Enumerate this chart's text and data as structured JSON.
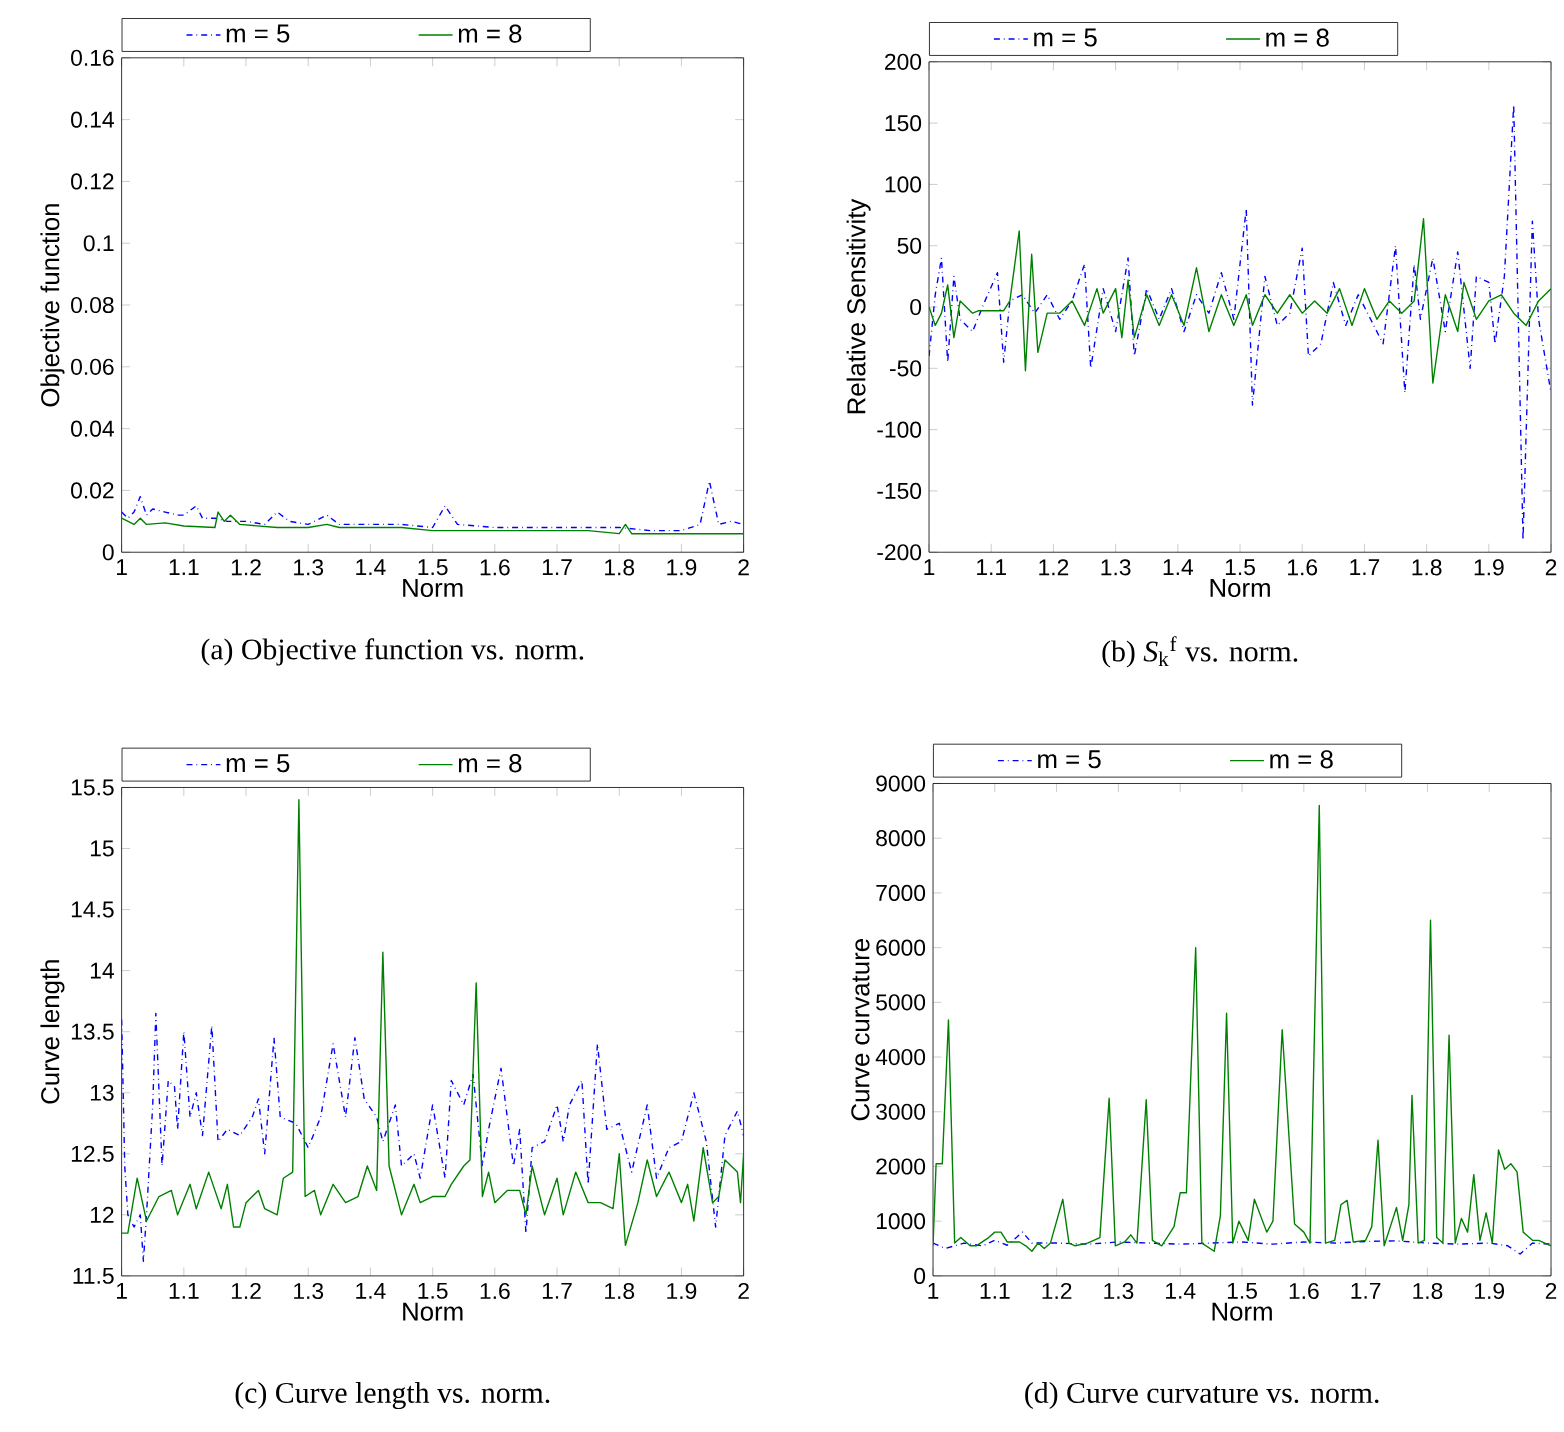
{
  "chart_data": [
    {
      "type": "line",
      "title": "(a)  Objective function vs. norm.",
      "xlabel": "Norm",
      "ylabel": "Objective function",
      "xlim": [
        1,
        2
      ],
      "ylim": [
        0,
        0.16
      ],
      "xticks": [
        1,
        1.1,
        1.2,
        1.3,
        1.4,
        1.5,
        1.6,
        1.7,
        1.8,
        1.9,
        2
      ],
      "yticks": [
        0,
        0.02,
        0.04,
        0.06,
        0.08,
        0.1,
        0.12,
        0.14,
        0.16
      ],
      "legend": "top",
      "series": [
        {
          "name": "m = 5",
          "color": "#0000ff",
          "line_style": "dashed",
          "x": [
            1.0,
            1.01,
            1.02,
            1.03,
            1.04,
            1.05,
            1.07,
            1.09,
            1.1,
            1.12,
            1.13,
            1.15,
            1.17,
            1.2,
            1.23,
            1.25,
            1.27,
            1.3,
            1.33,
            1.35,
            1.4,
            1.45,
            1.5,
            1.52,
            1.54,
            1.6,
            1.65,
            1.7,
            1.75,
            1.8,
            1.85,
            1.9,
            1.93,
            1.945,
            1.96,
            1.98,
            2.0
          ],
          "values": [
            0.013,
            0.011,
            0.013,
            0.018,
            0.012,
            0.014,
            0.013,
            0.012,
            0.012,
            0.015,
            0.011,
            0.011,
            0.01,
            0.01,
            0.009,
            0.013,
            0.01,
            0.009,
            0.012,
            0.009,
            0.009,
            0.009,
            0.008,
            0.015,
            0.009,
            0.008,
            0.008,
            0.008,
            0.008,
            0.008,
            0.007,
            0.007,
            0.009,
            0.023,
            0.009,
            0.01,
            0.009
          ]
        },
        {
          "name": "m = 8",
          "color": "#008000",
          "line_style": "solid",
          "x": [
            1.0,
            1.02,
            1.03,
            1.04,
            1.07,
            1.1,
            1.15,
            1.155,
            1.165,
            1.175,
            1.19,
            1.25,
            1.3,
            1.33,
            1.35,
            1.4,
            1.45,
            1.5,
            1.55,
            1.6,
            1.65,
            1.7,
            1.75,
            1.8,
            1.81,
            1.82,
            1.85,
            1.9,
            1.95,
            2.0
          ],
          "values": [
            0.011,
            0.009,
            0.011,
            0.009,
            0.0095,
            0.0085,
            0.008,
            0.013,
            0.01,
            0.012,
            0.009,
            0.008,
            0.008,
            0.009,
            0.008,
            0.008,
            0.008,
            0.007,
            0.007,
            0.007,
            0.007,
            0.007,
            0.007,
            0.006,
            0.009,
            0.006,
            0.006,
            0.006,
            0.006,
            0.006
          ]
        }
      ]
    },
    {
      "type": "line",
      "title": "(b)  *S*$_{k}$$^{f}$ vs. norm.",
      "xlabel": "Norm",
      "ylabel": "Relative Sensitivity",
      "xlim": [
        1,
        2
      ],
      "ylim": [
        -200,
        200
      ],
      "xticks": [
        1,
        1.1,
        1.2,
        1.3,
        1.4,
        1.5,
        1.6,
        1.7,
        1.8,
        1.9,
        2
      ],
      "yticks": [
        -200,
        -150,
        -100,
        -50,
        0,
        50,
        100,
        150,
        200
      ],
      "legend": "top",
      "series": [
        {
          "name": "m = 5",
          "color": "#0000ff",
          "line_style": "dashed",
          "x": [
            1.0,
            1.01,
            1.02,
            1.03,
            1.04,
            1.05,
            1.07,
            1.09,
            1.11,
            1.12,
            1.13,
            1.15,
            1.17,
            1.19,
            1.21,
            1.23,
            1.25,
            1.26,
            1.28,
            1.3,
            1.32,
            1.33,
            1.35,
            1.37,
            1.39,
            1.41,
            1.43,
            1.45,
            1.47,
            1.49,
            1.51,
            1.52,
            1.54,
            1.56,
            1.58,
            1.6,
            1.61,
            1.63,
            1.65,
            1.67,
            1.69,
            1.71,
            1.73,
            1.75,
            1.765,
            1.78,
            1.79,
            1.81,
            1.83,
            1.85,
            1.87,
            1.88,
            1.9,
            1.91,
            1.925,
            1.94,
            1.955,
            1.97,
            1.98,
            2.0
          ],
          "values": [
            -40,
            10,
            40,
            -45,
            25,
            -10,
            -20,
            5,
            28,
            -45,
            5,
            10,
            -5,
            10,
            -10,
            5,
            35,
            -50,
            15,
            -20,
            40,
            -40,
            15,
            -10,
            15,
            -20,
            10,
            -5,
            28,
            -10,
            80,
            -80,
            25,
            -15,
            -5,
            48,
            -40,
            -30,
            20,
            -15,
            10,
            -10,
            -30,
            50,
            -70,
            35,
            -10,
            40,
            -20,
            45,
            -50,
            25,
            20,
            -30,
            25,
            165,
            -190,
            70,
            -10,
            -70
          ]
        },
        {
          "name": "m = 8",
          "color": "#008000",
          "line_style": "solid",
          "x": [
            1.0,
            1.01,
            1.02,
            1.03,
            1.04,
            1.05,
            1.07,
            1.08,
            1.1,
            1.12,
            1.13,
            1.145,
            1.155,
            1.165,
            1.175,
            1.19,
            1.21,
            1.23,
            1.25,
            1.27,
            1.28,
            1.3,
            1.31,
            1.32,
            1.33,
            1.35,
            1.37,
            1.39,
            1.41,
            1.43,
            1.45,
            1.47,
            1.49,
            1.51,
            1.52,
            1.54,
            1.56,
            1.58,
            1.6,
            1.62,
            1.64,
            1.66,
            1.68,
            1.7,
            1.72,
            1.74,
            1.76,
            1.78,
            1.795,
            1.81,
            1.83,
            1.85,
            1.86,
            1.88,
            1.9,
            1.92,
            1.94,
            1.96,
            1.98,
            2.0
          ],
          "values": [
            0,
            -15,
            -5,
            18,
            -25,
            5,
            -5,
            -3,
            -3,
            -3,
            5,
            62,
            -52,
            43,
            -37,
            -5,
            -5,
            5,
            -15,
            15,
            -5,
            15,
            -25,
            22,
            -25,
            10,
            -15,
            10,
            -15,
            32,
            -20,
            10,
            -15,
            10,
            -15,
            10,
            -5,
            10,
            -5,
            5,
            -5,
            15,
            -15,
            15,
            -10,
            5,
            -5,
            5,
            72,
            -62,
            10,
            -20,
            20,
            -10,
            5,
            10,
            -5,
            -15,
            5,
            15
          ]
        }
      ]
    },
    {
      "type": "line",
      "title": "(c)  Curve length vs. norm.",
      "xlabel": "Norm",
      "ylabel": "Curve length",
      "xlim": [
        1,
        2
      ],
      "ylim": [
        11.5,
        15.5
      ],
      "xticks": [
        1,
        1.1,
        1.2,
        1.3,
        1.4,
        1.5,
        1.6,
        1.7,
        1.8,
        1.9,
        2
      ],
      "yticks": [
        11.5,
        12,
        12.5,
        13,
        13.5,
        14,
        14.5,
        15,
        15.5
      ],
      "legend": "top",
      "series": [
        {
          "name": "m = 5",
          "color": "#0000ff",
          "line_style": "dashed",
          "x": [
            1.0,
            1.005,
            1.01,
            1.02,
            1.03,
            1.035,
            1.04,
            1.05,
            1.055,
            1.065,
            1.075,
            1.085,
            1.09,
            1.1,
            1.11,
            1.12,
            1.13,
            1.145,
            1.155,
            1.17,
            1.19,
            1.21,
            1.22,
            1.23,
            1.245,
            1.255,
            1.28,
            1.3,
            1.32,
            1.34,
            1.36,
            1.375,
            1.39,
            1.41,
            1.42,
            1.44,
            1.45,
            1.47,
            1.48,
            1.5,
            1.52,
            1.53,
            1.55,
            1.565,
            1.58,
            1.59,
            1.61,
            1.63,
            1.64,
            1.65,
            1.66,
            1.68,
            1.7,
            1.71,
            1.72,
            1.74,
            1.75,
            1.765,
            1.78,
            1.8,
            1.82,
            1.845,
            1.86,
            1.88,
            1.9,
            1.92,
            1.94,
            1.955,
            1.97,
            1.99,
            2.0
          ],
          "values": [
            13.6,
            12.4,
            12.0,
            11.9,
            12.0,
            11.62,
            12.0,
            12.9,
            13.65,
            12.4,
            13.1,
            13.05,
            12.7,
            13.5,
            12.8,
            13.0,
            12.65,
            13.55,
            12.6,
            12.7,
            12.65,
            12.8,
            12.95,
            12.5,
            13.45,
            12.8,
            12.75,
            12.55,
            12.8,
            13.4,
            12.8,
            13.45,
            12.95,
            12.8,
            12.6,
            12.9,
            12.4,
            12.5,
            12.3,
            12.9,
            12.3,
            13.1,
            12.9,
            13.15,
            12.4,
            12.7,
            13.2,
            12.4,
            12.7,
            11.85,
            12.55,
            12.6,
            12.9,
            12.6,
            12.9,
            13.1,
            12.25,
            13.4,
            12.7,
            12.75,
            12.35,
            12.9,
            12.3,
            12.55,
            12.6,
            13.0,
            12.6,
            11.9,
            12.65,
            12.85,
            12.65
          ]
        },
        {
          "name": "m = 8",
          "color": "#008000",
          "line_style": "solid",
          "x": [
            1.0,
            1.01,
            1.025,
            1.04,
            1.06,
            1.08,
            1.09,
            1.11,
            1.12,
            1.14,
            1.16,
            1.17,
            1.18,
            1.19,
            1.2,
            1.22,
            1.23,
            1.25,
            1.26,
            1.275,
            1.285,
            1.295,
            1.31,
            1.32,
            1.34,
            1.36,
            1.38,
            1.395,
            1.41,
            1.42,
            1.43,
            1.45,
            1.47,
            1.48,
            1.5,
            1.52,
            1.53,
            1.55,
            1.56,
            1.57,
            1.58,
            1.59,
            1.6,
            1.62,
            1.64,
            1.65,
            1.66,
            1.68,
            1.7,
            1.71,
            1.73,
            1.75,
            1.77,
            1.79,
            1.8,
            1.81,
            1.83,
            1.845,
            1.86,
            1.88,
            1.9,
            1.91,
            1.92,
            1.935,
            1.95,
            1.96,
            1.97,
            1.99,
            1.995,
            2.0
          ],
          "values": [
            11.85,
            11.85,
            12.3,
            11.95,
            12.15,
            12.2,
            12.0,
            12.25,
            12.05,
            12.35,
            12.05,
            12.25,
            11.9,
            11.9,
            12.1,
            12.2,
            12.05,
            12.0,
            12.3,
            12.35,
            15.4,
            12.15,
            12.2,
            12.0,
            12.25,
            12.1,
            12.15,
            12.4,
            12.2,
            14.15,
            12.4,
            12.0,
            12.25,
            12.1,
            12.15,
            12.15,
            12.25,
            12.4,
            12.45,
            13.9,
            12.15,
            12.35,
            12.1,
            12.2,
            12.2,
            12.0,
            12.4,
            12.0,
            12.3,
            12.0,
            12.35,
            12.1,
            12.1,
            12.05,
            12.5,
            11.75,
            12.1,
            12.45,
            12.15,
            12.35,
            12.1,
            12.25,
            11.95,
            12.55,
            12.1,
            12.15,
            12.45,
            12.35,
            12.1,
            12.5
          ]
        }
      ]
    },
    {
      "type": "line",
      "title": "(d)  Curve curvature vs. norm.",
      "xlabel": "Norm",
      "ylabel": "Curve curvature",
      "xlim": [
        1,
        2
      ],
      "ylim": [
        0,
        9000
      ],
      "xticks": [
        1,
        1.1,
        1.2,
        1.3,
        1.4,
        1.5,
        1.6,
        1.7,
        1.8,
        1.9,
        2
      ],
      "yticks": [
        0,
        1000,
        2000,
        3000,
        4000,
        5000,
        6000,
        7000,
        8000,
        9000
      ],
      "legend": "top",
      "series": [
        {
          "name": "m = 5",
          "color": "#0000ff",
          "line_style": "dashed",
          "x": [
            1.0,
            1.02,
            1.05,
            1.08,
            1.1,
            1.12,
            1.145,
            1.16,
            1.2,
            1.25,
            1.3,
            1.35,
            1.4,
            1.45,
            1.5,
            1.55,
            1.6,
            1.65,
            1.7,
            1.75,
            1.8,
            1.85,
            1.9,
            1.93,
            1.95,
            1.97,
            2.0
          ],
          "values": [
            600,
            500,
            600,
            550,
            650,
            560,
            800,
            600,
            600,
            580,
            620,
            600,
            580,
            600,
            620,
            580,
            620,
            600,
            630,
            640,
            600,
            580,
            600,
            550,
            400,
            600,
            580
          ]
        },
        {
          "name": "m = 8",
          "color": "#008000",
          "line_style": "solid",
          "x": [
            1.0,
            1.005,
            1.015,
            1.025,
            1.035,
            1.045,
            1.06,
            1.07,
            1.09,
            1.1,
            1.11,
            1.12,
            1.14,
            1.15,
            1.16,
            1.17,
            1.18,
            1.19,
            1.21,
            1.22,
            1.23,
            1.25,
            1.27,
            1.285,
            1.295,
            1.31,
            1.32,
            1.33,
            1.345,
            1.355,
            1.37,
            1.39,
            1.4,
            1.41,
            1.425,
            1.435,
            1.455,
            1.465,
            1.475,
            1.485,
            1.495,
            1.51,
            1.52,
            1.54,
            1.55,
            1.565,
            1.585,
            1.6,
            1.61,
            1.625,
            1.635,
            1.65,
            1.66,
            1.67,
            1.68,
            1.7,
            1.71,
            1.72,
            1.73,
            1.74,
            1.75,
            1.76,
            1.77,
            1.775,
            1.785,
            1.795,
            1.805,
            1.815,
            1.825,
            1.835,
            1.845,
            1.855,
            1.865,
            1.875,
            1.885,
            1.895,
            1.905,
            1.915,
            1.925,
            1.935,
            1.945,
            1.955,
            1.97,
            1.98,
            2.0
          ],
          "values": [
            550,
            2050,
            2050,
            4680,
            600,
            700,
            550,
            550,
            700,
            800,
            800,
            620,
            620,
            550,
            450,
            600,
            500,
            600,
            1400,
            600,
            550,
            600,
            700,
            3250,
            550,
            620,
            750,
            600,
            3220,
            650,
            550,
            900,
            1520,
            1520,
            6000,
            600,
            450,
            1100,
            4800,
            600,
            1000,
            650,
            1400,
            800,
            1000,
            4500,
            950,
            800,
            600,
            8600,
            600,
            650,
            1300,
            1380,
            620,
            650,
            900,
            2480,
            550,
            900,
            1250,
            650,
            1300,
            3300,
            600,
            650,
            6500,
            700,
            600,
            4400,
            600,
            1050,
            800,
            1850,
            650,
            1150,
            600,
            2300,
            1950,
            2050,
            1900,
            800,
            650,
            650,
            550
          ]
        }
      ]
    }
  ]
}
